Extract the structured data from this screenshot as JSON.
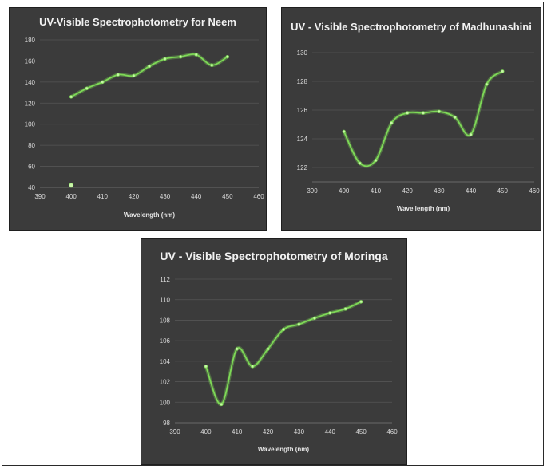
{
  "chart_data": [
    {
      "type": "line",
      "title": "UV-Visible Spectrophotometry for Neem",
      "xlabel": "Wavelength (nm)",
      "ylabel": "",
      "xlim": [
        390,
        460
      ],
      "ylim": [
        40,
        180
      ],
      "x_ticks": [
        390,
        400,
        410,
        420,
        430,
        440,
        450,
        460
      ],
      "y_ticks": [
        40,
        60,
        80,
        100,
        120,
        140,
        160,
        180
      ],
      "grid": true,
      "line_color": "#7ed957",
      "series": [
        {
          "x": [
            400,
            405,
            410,
            415,
            420,
            425,
            430,
            435,
            440,
            445,
            450
          ],
          "y": [
            126,
            134,
            140,
            147,
            146,
            155,
            162,
            164,
            166,
            156,
            164
          ]
        },
        {
          "x": [
            400
          ],
          "y": [
            42
          ],
          "markers_only": true
        }
      ]
    },
    {
      "type": "line",
      "title": "UV - Visible Spectrophotometry of Madhunashini",
      "xlabel": "Wave length (nm)",
      "ylabel": "",
      "xlim": [
        390,
        460
      ],
      "ylim": [
        121,
        130
      ],
      "x_ticks": [
        390,
        400,
        410,
        420,
        430,
        440,
        450,
        460
      ],
      "y_ticks": [
        122,
        124,
        126,
        128,
        130
      ],
      "grid": true,
      "line_color": "#7ed957",
      "series": [
        {
          "x": [
            400,
            405,
            410,
            415,
            420,
            425,
            430,
            435,
            440,
            445,
            450
          ],
          "y": [
            124.5,
            122.3,
            122.5,
            125.1,
            125.8,
            125.8,
            125.9,
            125.5,
            124.3,
            127.8,
            128.7
          ]
        }
      ]
    },
    {
      "type": "line",
      "title": "UV - Visible Spectrophotometry of Moringa",
      "xlabel": "Wavelength (nm)",
      "ylabel": "",
      "xlim": [
        390,
        460
      ],
      "ylim": [
        98,
        112
      ],
      "x_ticks": [
        390,
        400,
        410,
        420,
        430,
        440,
        450,
        460
      ],
      "y_ticks": [
        98,
        100,
        102,
        104,
        106,
        108,
        110,
        112
      ],
      "grid": true,
      "line_color": "#7ed957",
      "series": [
        {
          "x": [
            400,
            405,
            410,
            415,
            420,
            425,
            430,
            435,
            440,
            445,
            450
          ],
          "y": [
            103.5,
            99.8,
            105.2,
            103.5,
            105.2,
            107.1,
            107.6,
            108.2,
            108.7,
            109.1,
            109.8
          ]
        }
      ]
    }
  ]
}
